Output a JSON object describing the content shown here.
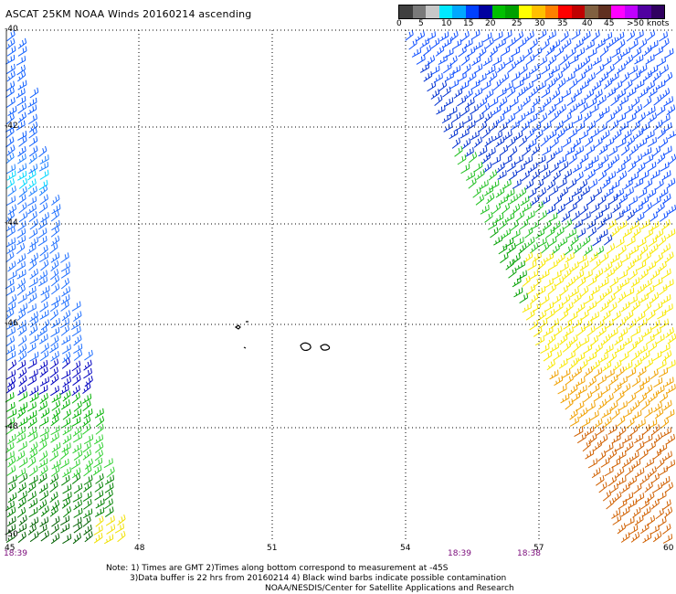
{
  "title": "ASCAT 25KM NOAA Winds 20160214 ascending",
  "legend": {
    "colors": [
      "#404040",
      "#7a7a7a",
      "#c8c8c8",
      "#00e8ff",
      "#00a8ff",
      "#0040ff",
      "#0000a0",
      "#00c000",
      "#00a000",
      "#ffff00",
      "#ffc000",
      "#ff8000",
      "#ff0000",
      "#c00000",
      "#806040",
      "#603020",
      "#ff00ff",
      "#c000ff",
      "#5000a0",
      "#300060"
    ],
    "labels": [
      "0",
      "5",
      "10",
      "15",
      "20",
      "25",
      "30",
      "35",
      "40",
      "45",
      ">50 knots"
    ]
  },
  "axes": {
    "lat_labels": [
      "-40",
      "-42",
      "-44",
      "-46",
      "-48",
      "-50"
    ],
    "lon_labels": [
      "45",
      "48",
      "51",
      "54",
      "57",
      "60"
    ]
  },
  "times": {
    "left": "18:39",
    "mid1": "18:39",
    "mid2": "18:38"
  },
  "notes": {
    "line1": "Note: 1) Times are GMT 2)Times along bottom correspond to measurement at -45S",
    "line2": "3)Data buffer is 22 hrs from 20160214 4) Black wind barbs indicate possible contamination",
    "line3": "NOAA/NESDIS/Center for Satellite Applications and Research"
  }
}
